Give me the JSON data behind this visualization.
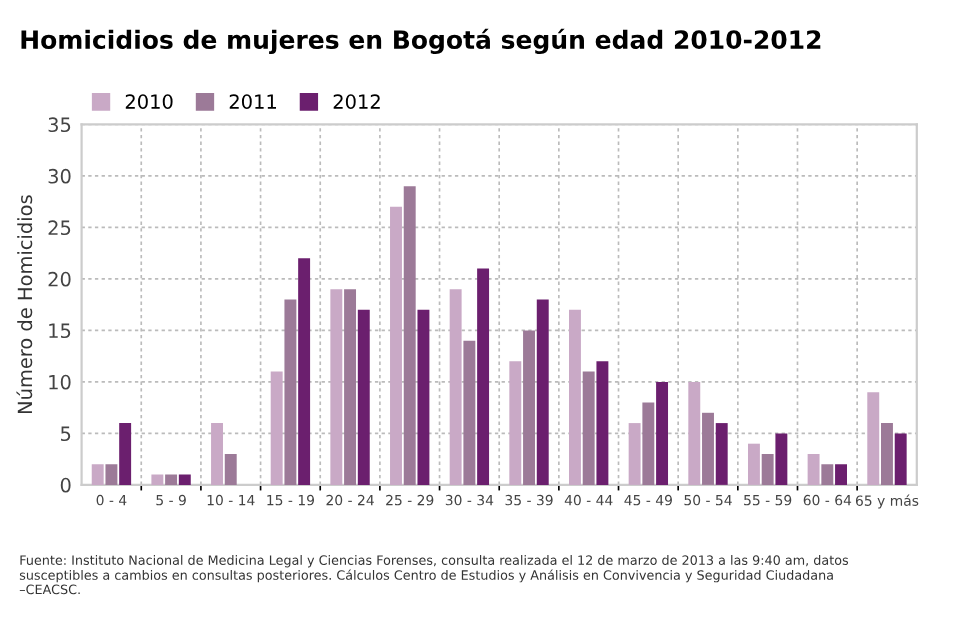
{
  "chart_data": {
    "type": "bar",
    "title": "Homicidios de mujeres en Bogotá según edad 2010-2012",
    "ylabel": "Número de Homicidios",
    "categories": [
      "0 - 4",
      "5 - 9",
      "10 - 14",
      "15 - 19",
      "20 - 24",
      "25 - 29",
      "30 - 34",
      "35 - 39",
      "40 - 44",
      "45 - 49",
      "50 - 54",
      "55 - 59",
      "60 - 64",
      "65 y más"
    ],
    "series": [
      {
        "name": "2010",
        "color": "#c9a9c6",
        "values": [
          2,
          1,
          6,
          11,
          19,
          27,
          19,
          12,
          17,
          6,
          10,
          4,
          3,
          9
        ]
      },
      {
        "name": "2011",
        "color": "#9c7a98",
        "values": [
          2,
          1,
          3,
          18,
          19,
          29,
          14,
          15,
          11,
          8,
          7,
          3,
          2,
          6
        ]
      },
      {
        "name": "2012",
        "color": "#6b1f6e",
        "values": [
          6,
          1,
          0,
          22,
          17,
          17,
          21,
          18,
          12,
          10,
          6,
          5,
          2,
          5
        ]
      }
    ],
    "ylim": [
      0,
      35
    ],
    "yticks": [
      0,
      5,
      10,
      15,
      20,
      25,
      30,
      35
    ],
    "grid": true,
    "legend": "top left",
    "annotations": [
      "Fuente: Instituto Nacional de Medicina Legal y Ciencias Forenses, consulta realizada el 12 de marzo de 2013 a las 9:40 am, datos susceptibles a cambios en consultas posteriores. Cálculos Centro de Estudios y Análisis en Convivencia y Seguridad Ciudadana –CEACSC."
    ]
  }
}
